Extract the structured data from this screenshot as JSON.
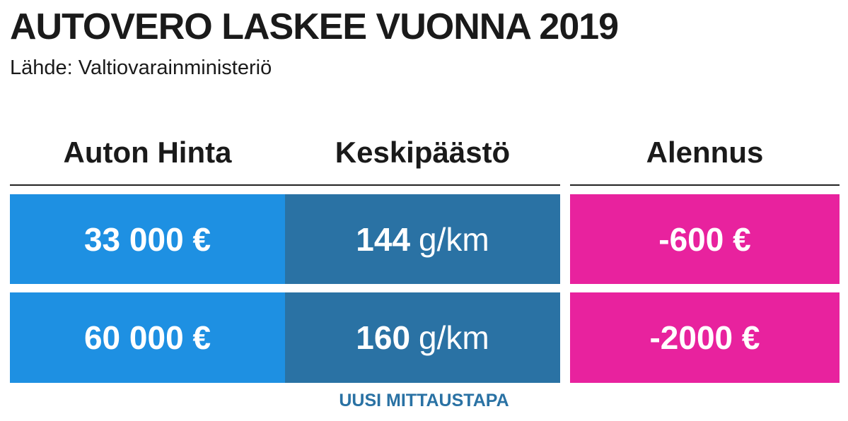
{
  "header": {
    "title": "AUTOVERO LASKEE VUONNA 2019",
    "source": "Lähde: Valtiovarainministeriö"
  },
  "table": {
    "headers": [
      "Auton Hinta",
      "Keskipäästö",
      "Alennus"
    ],
    "rows": [
      {
        "price": "33 000 €",
        "emission": "144",
        "emission_unit": "g/km",
        "discount": "-600 €"
      },
      {
        "price": "60 000 €",
        "emission": "160",
        "emission_unit": "g/km",
        "discount": "-2000 €"
      }
    ]
  },
  "footer": {
    "note": "UUSI MITTAUSTAPA"
  }
}
